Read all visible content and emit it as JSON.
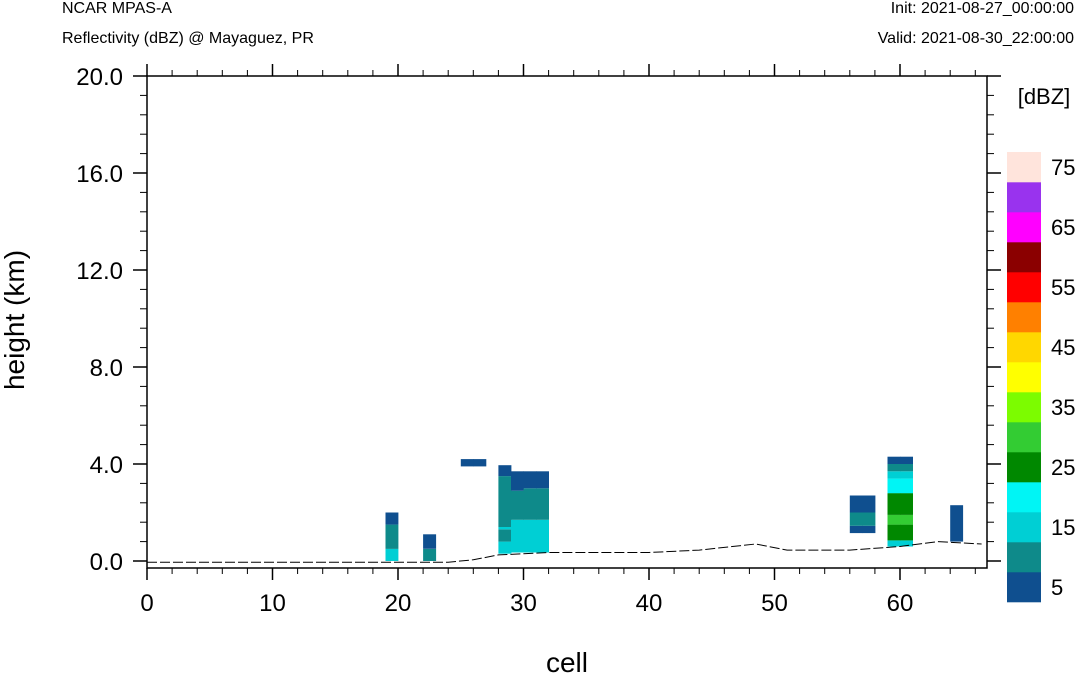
{
  "header": {
    "title": "NCAR MPAS-A",
    "subtitle": "Reflectivity (dBZ) @ Mayaguez, PR",
    "init": "Init: 2021-08-27_00:00:00",
    "valid": "Valid: 2021-08-30_22:00:00"
  },
  "chart_data": {
    "type": "heatmap",
    "title": "Reflectivity (dBZ) @ Mayaguez, PR",
    "xlabel": "cell",
    "ylabel": "height (km)",
    "xlim": [
      0,
      66.5
    ],
    "ylim": [
      -0.4,
      20
    ],
    "x_ticks": [
      0,
      10,
      20,
      30,
      40,
      50,
      60
    ],
    "y_ticks": [
      0.0,
      4.0,
      8.0,
      12.0,
      16.0,
      20.0
    ],
    "y_tick_labels": [
      "0.0",
      "4.0",
      "8.0",
      "12.0",
      "16.0",
      "20.0"
    ],
    "grid": false,
    "colorbar": {
      "unit_label": "[dBZ]",
      "levels": [
        5,
        10,
        15,
        20,
        25,
        30,
        35,
        40,
        45,
        50,
        55,
        60,
        65,
        70,
        75
      ],
      "tick_labels": [
        "5",
        "15",
        "25",
        "35",
        "45",
        "55",
        "65",
        "75"
      ],
      "colors": [
        "#0f4f8f",
        "#0e8a8a",
        "#00cfd4",
        "#00f5f5",
        "#008800",
        "#33cc33",
        "#7cfc00",
        "#ffff00",
        "#ffd700",
        "#ff8000",
        "#ff0000",
        "#8b0000",
        "#ff00ff",
        "#9933ee",
        "#ffe4dc"
      ]
    },
    "terrain": [
      [
        0,
        -0.05
      ],
      [
        24,
        -0.05
      ],
      [
        26,
        0.05
      ],
      [
        28,
        0.25
      ],
      [
        32,
        0.35
      ],
      [
        40,
        0.35
      ],
      [
        44,
        0.45
      ],
      [
        48.5,
        0.7
      ],
      [
        51,
        0.45
      ],
      [
        56,
        0.45
      ],
      [
        60,
        0.6
      ],
      [
        63,
        0.8
      ],
      [
        66.5,
        0.7
      ]
    ],
    "cells": [
      {
        "x": 19,
        "bands": [
          [
            0.0,
            0.5,
            15
          ],
          [
            0.5,
            1.5,
            10
          ],
          [
            1.5,
            2.0,
            5
          ]
        ]
      },
      {
        "x": 22,
        "bands": [
          [
            0.0,
            0.5,
            10
          ],
          [
            0.5,
            1.1,
            5
          ]
        ]
      },
      {
        "x": 25,
        "bands": [
          [
            3.9,
            4.2,
            5
          ]
        ]
      },
      {
        "x": 26,
        "bands": [
          [
            3.9,
            4.2,
            5
          ]
        ]
      },
      {
        "x": 28,
        "bands": [
          [
            0.3,
            0.8,
            15
          ],
          [
            0.8,
            1.3,
            10
          ],
          [
            1.3,
            1.4,
            15
          ],
          [
            1.4,
            3.5,
            10
          ],
          [
            3.5,
            3.95,
            5
          ]
        ]
      },
      {
        "x": 29,
        "bands": [
          [
            0.35,
            1.7,
            15
          ],
          [
            1.7,
            2.9,
            10
          ],
          [
            2.9,
            3.7,
            5
          ]
        ]
      },
      {
        "x": 30,
        "bands": [
          [
            0.35,
            1.7,
            15
          ],
          [
            1.7,
            3.0,
            10
          ],
          [
            3.0,
            3.7,
            5
          ]
        ]
      },
      {
        "x": 31,
        "bands": [
          [
            0.35,
            1.7,
            15
          ],
          [
            1.7,
            3.0,
            10
          ],
          [
            3.0,
            3.7,
            5
          ]
        ]
      },
      {
        "x": 56,
        "bands": [
          [
            1.15,
            1.45,
            5
          ],
          [
            1.45,
            2.0,
            10
          ],
          [
            2.0,
            2.7,
            5
          ]
        ]
      },
      {
        "x": 57,
        "bands": [
          [
            1.15,
            1.45,
            5
          ],
          [
            1.45,
            2.0,
            10
          ],
          [
            2.0,
            2.7,
            5
          ]
        ]
      },
      {
        "x": 59,
        "bands": [
          [
            0.6,
            0.85,
            15
          ],
          [
            0.85,
            1.5,
            25
          ],
          [
            1.5,
            1.9,
            30
          ],
          [
            1.9,
            2.8,
            25
          ],
          [
            2.8,
            3.4,
            20
          ],
          [
            3.4,
            3.7,
            15
          ],
          [
            3.7,
            4.0,
            10
          ],
          [
            4.0,
            4.3,
            5
          ]
        ]
      },
      {
        "x": 60,
        "bands": [
          [
            0.6,
            0.85,
            15
          ],
          [
            0.85,
            1.5,
            25
          ],
          [
            1.5,
            1.9,
            30
          ],
          [
            1.9,
            2.8,
            25
          ],
          [
            2.8,
            3.4,
            20
          ],
          [
            3.4,
            3.7,
            15
          ],
          [
            3.7,
            4.0,
            10
          ],
          [
            4.0,
            4.3,
            5
          ]
        ]
      },
      {
        "x": 64,
        "bands": [
          [
            0.8,
            2.3,
            5
          ]
        ]
      }
    ]
  }
}
